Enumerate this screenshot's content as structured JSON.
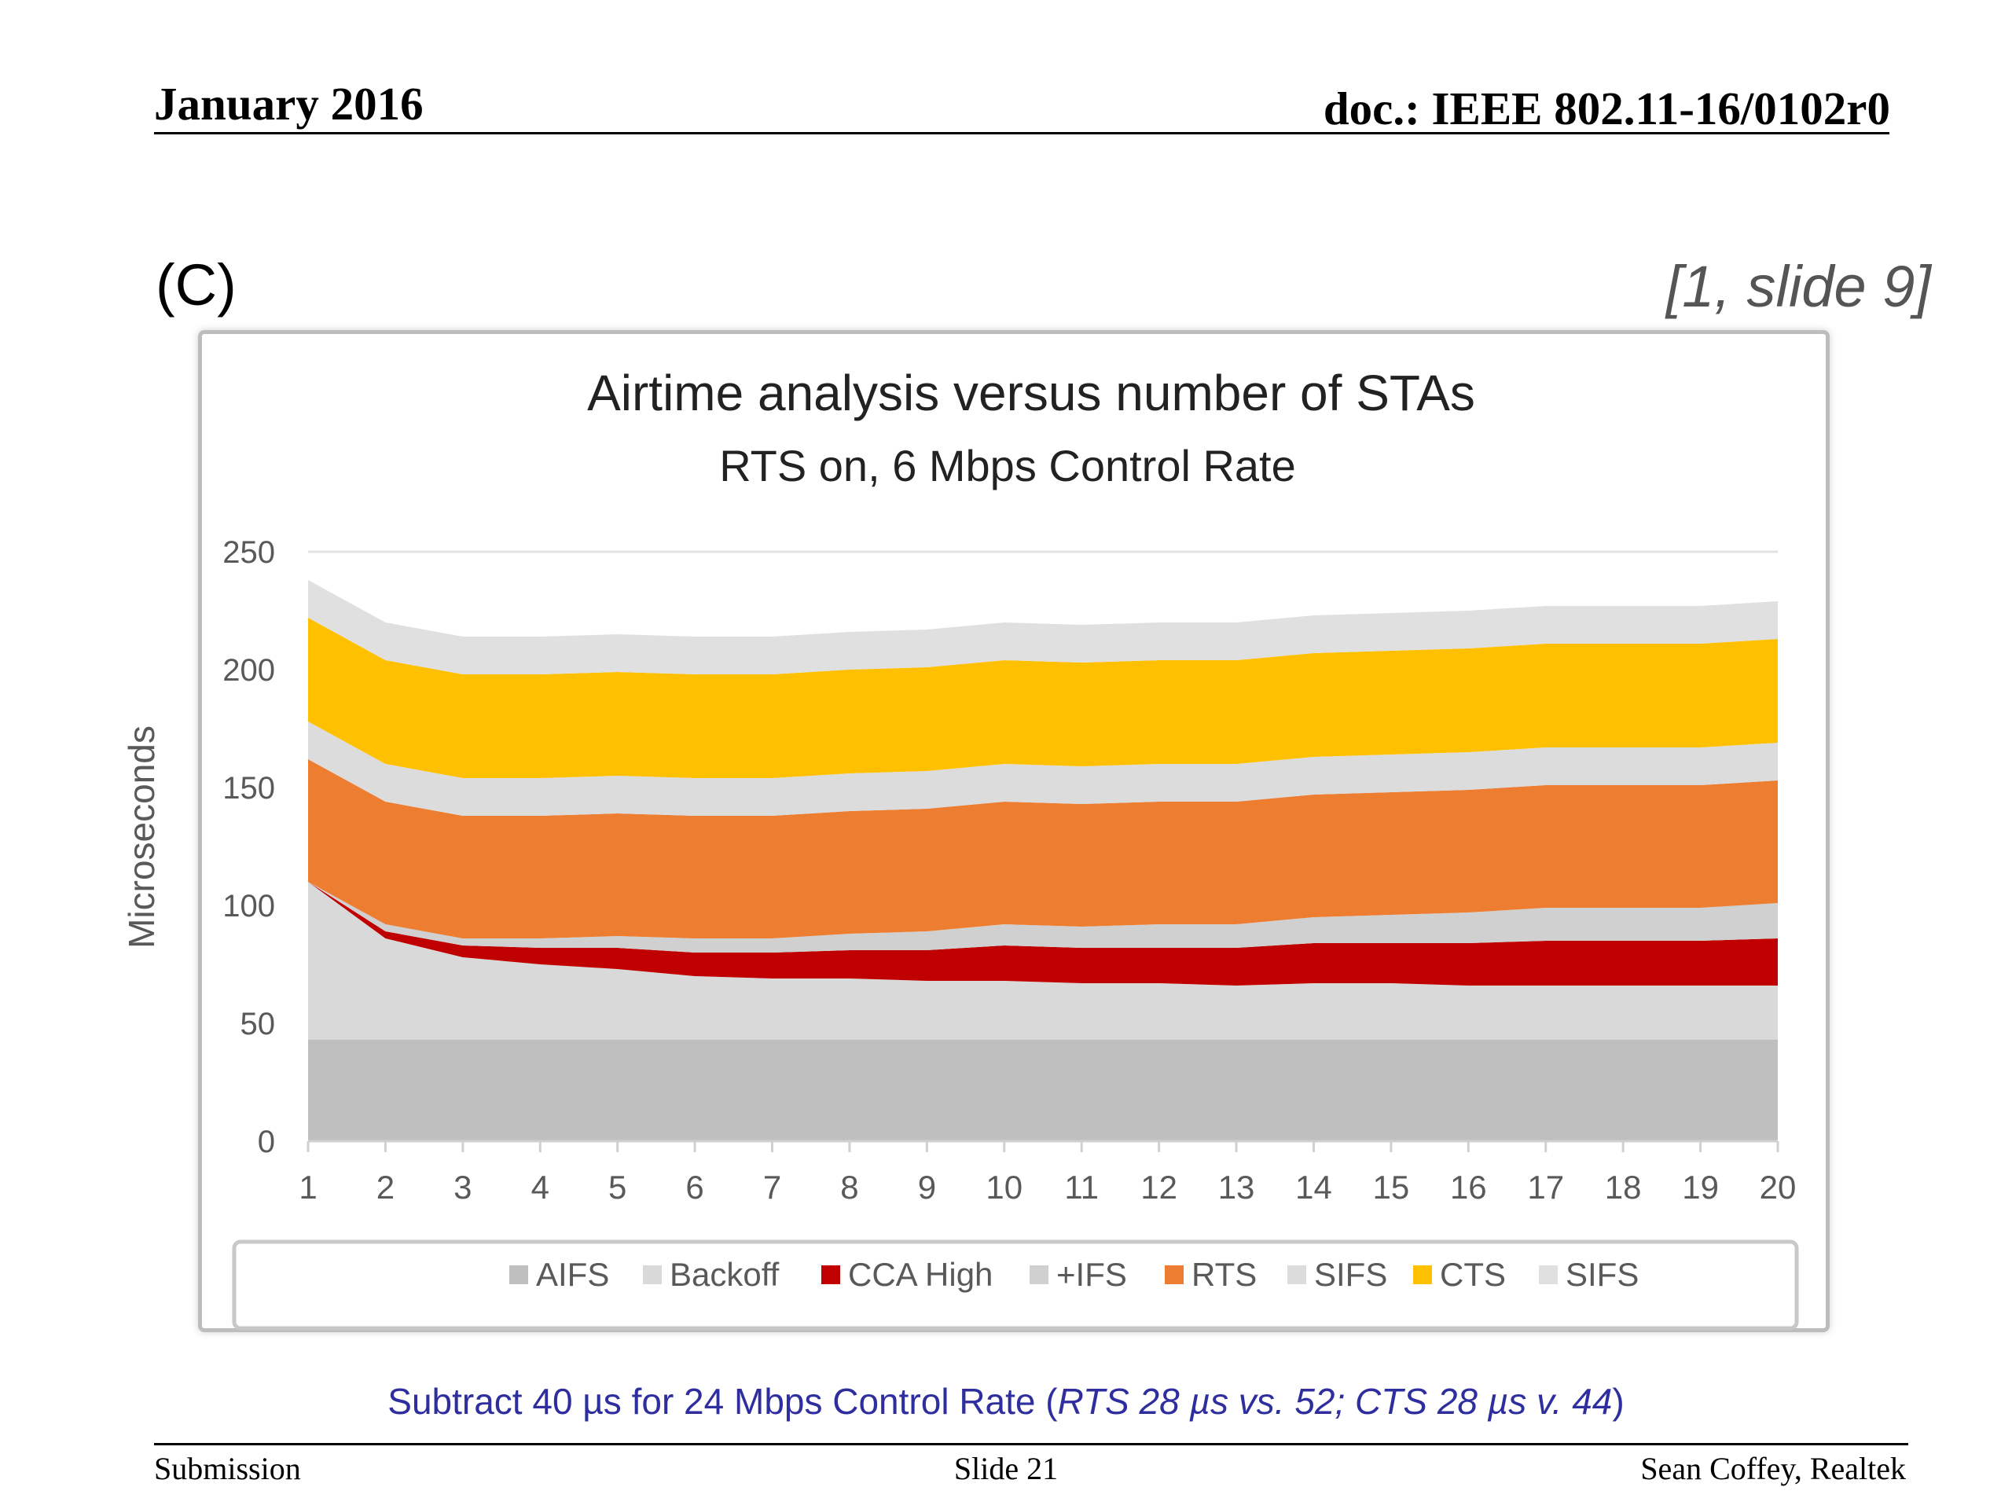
{
  "header": {
    "date": "January 2016",
    "doc_id": "doc.: IEEE 802.11-16/0102r0"
  },
  "panel_label": "(C)",
  "citation": "[1, slide 9]",
  "note": {
    "prefix": "Subtract 40 µs for 24 Mbps Control Rate (",
    "italic": "RTS 28 µs vs. 52; CTS 28 µs v. 44",
    "suffix": ")"
  },
  "footer": {
    "left": "Submission",
    "center": "Slide 21",
    "right": "Sean Coffey, Realtek"
  },
  "chart_data": {
    "type": "area",
    "stacked": true,
    "title": "Airtime analysis versus number of STAs",
    "subtitle": "RTS on, 6 Mbps Control Rate",
    "xlabel": "",
    "ylabel": "Microseconds",
    "ylim": [
      0,
      250
    ],
    "yticks": [
      0,
      50,
      100,
      150,
      200,
      250
    ],
    "categories": [
      1,
      2,
      3,
      4,
      5,
      6,
      7,
      8,
      9,
      10,
      11,
      12,
      13,
      14,
      15,
      16,
      17,
      18,
      19,
      20
    ],
    "grid": "horizontal",
    "legend_position": "bottom",
    "series": [
      {
        "name": "AIFS",
        "color": "#bfbfbf",
        "values": [
          43,
          43,
          43,
          43,
          43,
          43,
          43,
          43,
          43,
          43,
          43,
          43,
          43,
          43,
          43,
          43,
          43,
          43,
          43,
          43
        ]
      },
      {
        "name": "Backoff",
        "color": "#d9d9d9",
        "values": [
          67,
          43,
          35,
          32,
          30,
          27,
          26,
          26,
          25,
          25,
          24,
          24,
          23,
          24,
          24,
          23,
          23,
          23,
          23,
          23
        ]
      },
      {
        "name": "CCA High",
        "color": "#c00000",
        "values": [
          0,
          3,
          5,
          7,
          9,
          10,
          11,
          12,
          13,
          15,
          15,
          15,
          16,
          17,
          17,
          18,
          19,
          19,
          19,
          20
        ]
      },
      {
        "name": "+IFS",
        "color": "#d0d0d0",
        "values": [
          0,
          3,
          3,
          4,
          5,
          6,
          6,
          7,
          8,
          9,
          9,
          10,
          10,
          11,
          12,
          13,
          14,
          14,
          14,
          15
        ]
      },
      {
        "name": "RTS",
        "color": "#ed7d31",
        "values": [
          52,
          52,
          52,
          52,
          52,
          52,
          52,
          52,
          52,
          52,
          52,
          52,
          52,
          52,
          52,
          52,
          52,
          52,
          52,
          52
        ]
      },
      {
        "name": "SIFS",
        "color": "#dcdcdc",
        "values": [
          16,
          16,
          16,
          16,
          16,
          16,
          16,
          16,
          16,
          16,
          16,
          16,
          16,
          16,
          16,
          16,
          16,
          16,
          16,
          16
        ]
      },
      {
        "name": "CTS",
        "color": "#ffc000",
        "values": [
          44,
          44,
          44,
          44,
          44,
          44,
          44,
          44,
          44,
          44,
          44,
          44,
          44,
          44,
          44,
          44,
          44,
          44,
          44,
          44
        ]
      },
      {
        "name": "SIFS",
        "color": "#e0e0e0",
        "values": [
          16,
          16,
          16,
          16,
          16,
          16,
          16,
          16,
          16,
          16,
          16,
          16,
          16,
          16,
          16,
          16,
          16,
          16,
          16,
          16
        ]
      }
    ]
  }
}
